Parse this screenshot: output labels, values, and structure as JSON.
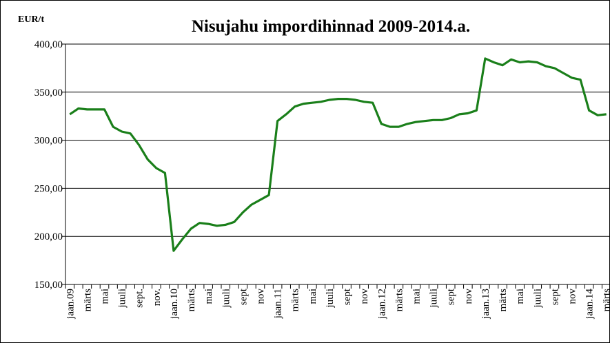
{
  "chart_data": {
    "type": "line",
    "title": "Nisujahu impordihinnad 2009-2014.a.",
    "y_label": "EUR/t",
    "categories": [
      "jaan.09",
      null,
      "märts",
      null,
      "mai",
      null,
      "juuli",
      null,
      "sept.",
      null,
      "nov.",
      null,
      "jaan.10",
      null,
      "märts",
      null,
      "mai",
      null,
      "juuli",
      null,
      "sept",
      null,
      "nov",
      null,
      "jaan.11",
      null,
      "märts",
      null,
      "mai",
      null,
      "juuli",
      null,
      "sept",
      null,
      "nov",
      null,
      "jaan.12",
      null,
      "märts",
      null,
      "mai",
      null,
      "juuli",
      null,
      "sept",
      null,
      "nov",
      null,
      "jaan.13",
      null,
      "märts",
      null,
      "mai",
      null,
      "juuli",
      null,
      "sept",
      null,
      "nov",
      null,
      "jaan.14",
      null,
      "märts"
    ],
    "series": [
      {
        "color": "#1a7f1a",
        "values": [
          327,
          333,
          332,
          332,
          332,
          314,
          309,
          307,
          295,
          280,
          271,
          266,
          185,
          197,
          208,
          214,
          213,
          211,
          212,
          215,
          225,
          233,
          238,
          243,
          320,
          327,
          335,
          338,
          339,
          340,
          342,
          343,
          343,
          342,
          340,
          339,
          317,
          314,
          314,
          317,
          319,
          320,
          321,
          321,
          323,
          327,
          328,
          331,
          385,
          381,
          378,
          384,
          381,
          382,
          381,
          377,
          375,
          370,
          365,
          363,
          331,
          326,
          327
        ]
      }
    ],
    "ylim": [
      150,
      400
    ],
    "yticks": [
      {
        "value": 150,
        "label": "150,00"
      },
      {
        "value": 200,
        "label": "200,00"
      },
      {
        "value": 250,
        "label": "250,00"
      },
      {
        "value": 300,
        "label": "300,00"
      },
      {
        "value": 350,
        "label": "350,00"
      },
      {
        "value": 400,
        "label": "400,00"
      }
    ],
    "grid": true
  }
}
